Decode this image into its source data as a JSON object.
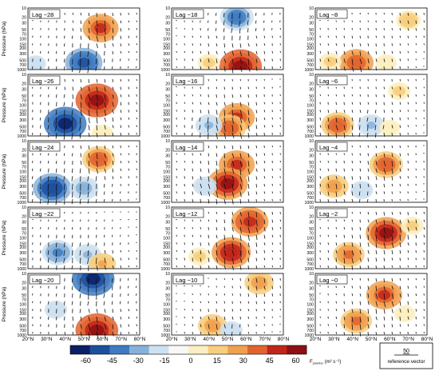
{
  "figure": {
    "y_axis_label": "Pressure (hPa)",
    "pressure_ticks": [
      "10",
      "20",
      "30",
      "50",
      "70",
      "100",
      "150",
      "200",
      "300",
      "500",
      "700",
      "1000"
    ],
    "latitude_ticks": [
      "20°N",
      "30°N",
      "40°N",
      "50°N",
      "60°N",
      "70°N",
      "80°N"
    ],
    "colorbar_label": "F",
    "colorbar_label_sub": "plumbs",
    "colorbar_units": "(m² s⁻²)",
    "colorbar_ticks": [
      "-60",
      "-45",
      "-30",
      "-15",
      "0",
      "15",
      "30",
      "45",
      "60"
    ],
    "colorbar_colors": [
      "#0b1f66",
      "#1d4f9e",
      "#3f7bc1",
      "#86b2da",
      "#cde1f0",
      "#f8f8f8",
      "#fbeec0",
      "#f8ce7e",
      "#f1a04e",
      "#e2632f",
      "#c1241b",
      "#8e0f14"
    ],
    "reference_value": "50",
    "reference_text": "reference vector",
    "colors": {
      "positive": "#d9452a",
      "negative": "#2c6ab0",
      "arrow": "#111111",
      "frame": "#000000"
    }
  },
  "chart_data": {
    "type": "heatmap",
    "description_units": "Fplumb (m2 s-2) with Plumb flux vectors",
    "x": {
      "label": "",
      "range": [
        "20°N",
        "80°N"
      ],
      "ticks": [
        "20°N",
        "30°N",
        "40°N",
        "50°N",
        "60°N",
        "70°N",
        "80°N"
      ]
    },
    "y": {
      "label": "Pressure (hPa)",
      "range": [
        1000,
        10
      ],
      "scale": "log"
    },
    "color_range": [
      -60,
      60
    ],
    "panels": [
      {
        "label": "Lag −28",
        "blobs": [
          {
            "lat": 59,
            "p": 45,
            "v": 45
          },
          {
            "lat": 50,
            "p": 600,
            "v": -48
          },
          {
            "lat": 24,
            "p": 650,
            "v": -12
          }
        ]
      },
      {
        "label": "Lag −18",
        "blobs": [
          {
            "lat": 55,
            "p": 20,
            "v": -40
          },
          {
            "lat": 57,
            "p": 780,
            "v": 60
          },
          {
            "lat": 40,
            "p": 600,
            "v": 15
          }
        ]
      },
      {
        "label": "Lag −8",
        "blobs": [
          {
            "lat": 70,
            "p": 25,
            "v": 20
          },
          {
            "lat": 42,
            "p": 600,
            "v": 42
          },
          {
            "lat": 28,
            "p": 550,
            "v": 15
          },
          {
            "lat": 58,
            "p": 600,
            "v": 12
          }
        ]
      },
      {
        "label": "Lag −26",
        "blobs": [
          {
            "lat": 57,
            "p": 70,
            "v": 60
          },
          {
            "lat": 40,
            "p": 400,
            "v": -60
          },
          {
            "lat": 60,
            "p": 800,
            "v": 12
          }
        ]
      },
      {
        "label": "Lag −16",
        "blobs": [
          {
            "lat": 55,
            "p": 250,
            "v": 45
          },
          {
            "lat": 51,
            "p": 550,
            "v": 40
          },
          {
            "lat": 40,
            "p": 450,
            "v": -25
          }
        ]
      },
      {
        "label": "Lag −6",
        "blobs": [
          {
            "lat": 32,
            "p": 450,
            "v": 38
          },
          {
            "lat": 50,
            "p": 450,
            "v": -25
          },
          {
            "lat": 65,
            "p": 35,
            "v": 15
          },
          {
            "lat": 60,
            "p": 550,
            "v": 10
          }
        ]
      },
      {
        "label": "Lag −24",
        "blobs": [
          {
            "lat": 58,
            "p": 40,
            "v": 38
          },
          {
            "lat": 33,
            "p": 350,
            "v": -50
          },
          {
            "lat": 50,
            "p": 350,
            "v": -30
          }
        ]
      },
      {
        "label": "Lag −14",
        "blobs": [
          {
            "lat": 55,
            "p": 60,
            "v": 45
          },
          {
            "lat": 50,
            "p": 250,
            "v": 55
          },
          {
            "lat": 38,
            "p": 300,
            "v": -18
          }
        ]
      },
      {
        "label": "Lag −4",
        "blobs": [
          {
            "lat": 58,
            "p": 60,
            "v": 40
          },
          {
            "lat": 30,
            "p": 300,
            "v": 30
          },
          {
            "lat": 45,
            "p": 400,
            "v": -15
          }
        ]
      },
      {
        "label": "Lag −22",
        "blobs": [
          {
            "lat": 36,
            "p": 300,
            "v": -35
          },
          {
            "lat": 52,
            "p": 350,
            "v": -25
          },
          {
            "lat": 60,
            "p": 700,
            "v": 25
          }
        ]
      },
      {
        "label": "Lag −12",
        "blobs": [
          {
            "lat": 62,
            "p": 30,
            "v": 48
          },
          {
            "lat": 52,
            "p": 300,
            "v": 52
          },
          {
            "lat": 35,
            "p": 400,
            "v": 15
          }
        ]
      },
      {
        "label": "Lag −2",
        "blobs": [
          {
            "lat": 58,
            "p": 70,
            "v": 55
          },
          {
            "lat": 38,
            "p": 350,
            "v": 35
          },
          {
            "lat": 72,
            "p": 40,
            "v": 15
          }
        ]
      },
      {
        "label": "Lag −20",
        "blobs": [
          {
            "lat": 55,
            "p": 15,
            "v": -60
          },
          {
            "lat": 57,
            "p": 700,
            "v": 60
          },
          {
            "lat": 35,
            "p": 150,
            "v": -15
          }
        ]
      },
      {
        "label": "Lag −10",
        "blobs": [
          {
            "lat": 67,
            "p": 20,
            "v": 30
          },
          {
            "lat": 42,
            "p": 500,
            "v": 30
          },
          {
            "lat": 52,
            "p": 700,
            "v": -15
          }
        ]
      },
      {
        "label": "Lag −0",
        "blobs": [
          {
            "lat": 57,
            "p": 50,
            "v": 45
          },
          {
            "lat": 42,
            "p": 350,
            "v": 35
          },
          {
            "lat": 68,
            "p": 200,
            "v": 12
          }
        ]
      }
    ]
  }
}
